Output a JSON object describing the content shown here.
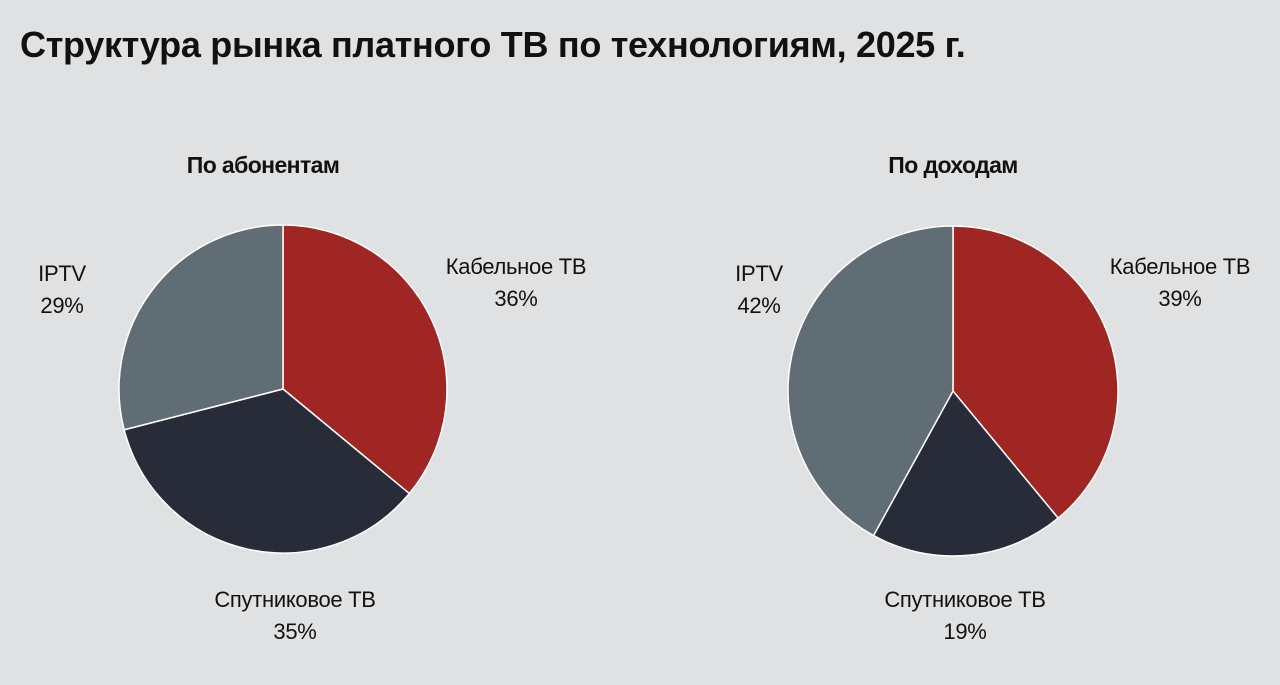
{
  "title": "Структура рынка платного ТВ по технологиям, 2025 г.",
  "colors": {
    "background": "#dfe1e2",
    "cable": "#a02623",
    "satellite": "#282c39",
    "iptv": "#616d74"
  },
  "chart_data": [
    {
      "type": "pie",
      "title": "По абонентам",
      "slices": [
        {
          "label": "Кабельное ТВ",
          "value": 36,
          "display": "36%",
          "color": "#a02623"
        },
        {
          "label": "Спутниковое ТВ",
          "value": 35,
          "display": "35%",
          "color": "#282c39"
        },
        {
          "label": "IPTV",
          "value": 29,
          "display": "29%",
          "color": "#616d74"
        }
      ]
    },
    {
      "type": "pie",
      "title": "По доходам",
      "slices": [
        {
          "label": "Кабельное ТВ",
          "value": 39,
          "display": "39%",
          "color": "#a02623"
        },
        {
          "label": "Спутниковое ТВ",
          "value": 19,
          "display": "19%",
          "color": "#282c39"
        },
        {
          "label": "IPTV",
          "value": 42,
          "display": "42%",
          "color": "#616d74"
        }
      ]
    }
  ]
}
